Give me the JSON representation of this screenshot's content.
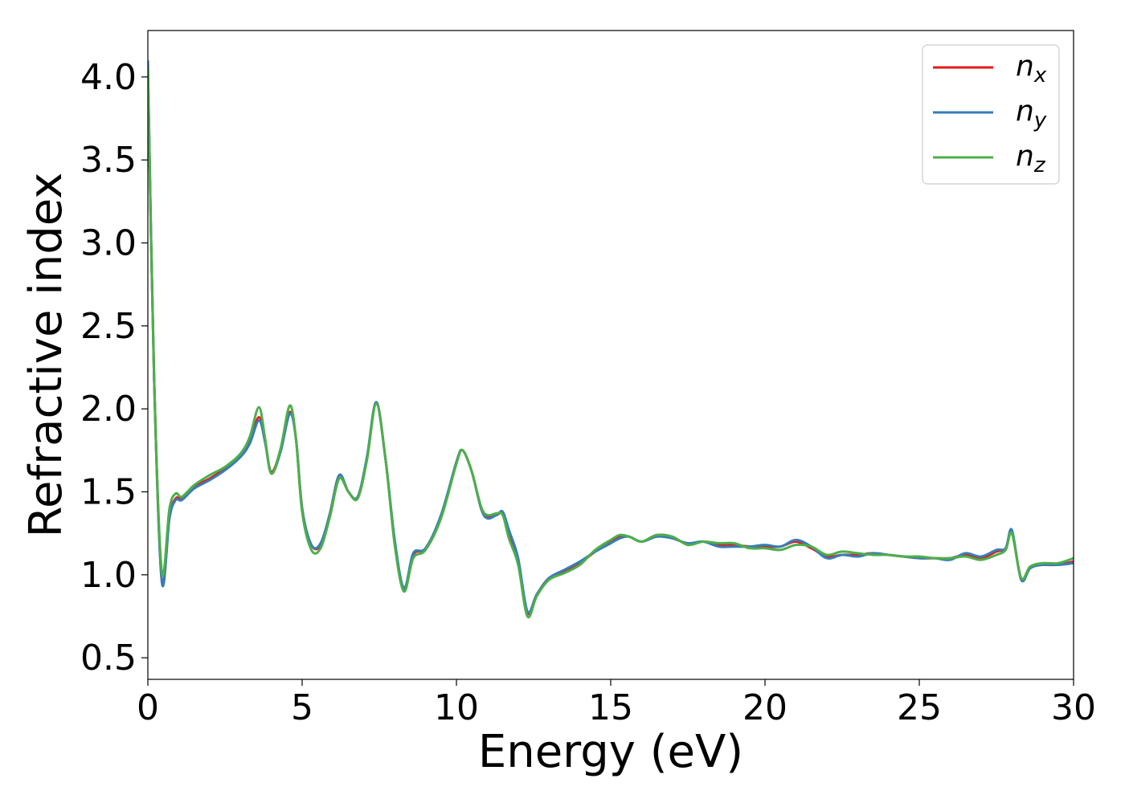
{
  "chart_data": {
    "type": "line",
    "title": "",
    "xlabel": "Energy (eV)",
    "ylabel": "Refractive index",
    "xlim": [
      0,
      30
    ],
    "ylim": [
      0.37,
      4.28
    ],
    "xticks": [
      0,
      5,
      10,
      15,
      20,
      25,
      30
    ],
    "xtick_labels": [
      "0",
      "5",
      "10",
      "15",
      "20",
      "25",
      "30"
    ],
    "yticks": [
      0.5,
      1.0,
      1.5,
      2.0,
      2.5,
      3.0,
      3.5,
      4.0
    ],
    "ytick_labels": [
      "0.5",
      "1.0",
      "1.5",
      "2.0",
      "2.5",
      "3.0",
      "3.5",
      "4.0"
    ],
    "grid": false,
    "legend_position": "top-right",
    "legend": [
      {
        "base": "n",
        "sub": "x"
      },
      {
        "base": "n",
        "sub": "y"
      },
      {
        "base": "n",
        "sub": "z"
      }
    ],
    "x": [
      0,
      0.2,
      0.45,
      0.7,
      0.9,
      1.1,
      1.5,
      2.0,
      2.5,
      3.0,
      3.3,
      3.6,
      3.8,
      4.0,
      4.3,
      4.6,
      4.8,
      5.0,
      5.3,
      5.6,
      5.9,
      6.2,
      6.5,
      6.8,
      7.1,
      7.4,
      7.7,
      8.0,
      8.3,
      8.6,
      9.0,
      9.5,
      10.0,
      10.2,
      10.5,
      10.8,
      11.0,
      11.3,
      11.5,
      11.7,
      12.0,
      12.3,
      12.6,
      13.0,
      13.5,
      14.0,
      14.5,
      15.0,
      15.3,
      15.6,
      16.0,
      16.5,
      17.0,
      17.5,
      18.0,
      18.5,
      19.0,
      19.5,
      20.0,
      20.5,
      21.0,
      21.5,
      22.0,
      22.5,
      23.0,
      23.5,
      24.0,
      24.5,
      25.0,
      25.5,
      26.0,
      26.5,
      27.0,
      27.5,
      27.8,
      28.0,
      28.3,
      28.6,
      29.0,
      29.5,
      30.0
    ],
    "series": [
      {
        "name": "n_x",
        "color": "#e41a1c",
        "values": [
          4.08,
          2.2,
          0.97,
          1.35,
          1.46,
          1.46,
          1.53,
          1.58,
          1.64,
          1.72,
          1.8,
          1.95,
          1.8,
          1.62,
          1.75,
          1.98,
          1.82,
          1.4,
          1.18,
          1.18,
          1.37,
          1.6,
          1.5,
          1.47,
          1.7,
          2.04,
          1.7,
          1.2,
          0.91,
          1.12,
          1.16,
          1.35,
          1.68,
          1.75,
          1.62,
          1.4,
          1.35,
          1.36,
          1.37,
          1.25,
          1.08,
          0.77,
          0.88,
          0.98,
          1.02,
          1.07,
          1.14,
          1.2,
          1.23,
          1.23,
          1.2,
          1.24,
          1.22,
          1.19,
          1.2,
          1.18,
          1.18,
          1.17,
          1.17,
          1.17,
          1.2,
          1.16,
          1.11,
          1.12,
          1.12,
          1.13,
          1.12,
          1.11,
          1.1,
          1.1,
          1.1,
          1.12,
          1.1,
          1.14,
          1.16,
          1.26,
          0.98,
          1.05,
          1.06,
          1.06,
          1.08
        ]
      },
      {
        "name": "n_y",
        "color": "#377eb8",
        "values": [
          4.1,
          2.2,
          0.96,
          1.34,
          1.45,
          1.45,
          1.52,
          1.57,
          1.63,
          1.71,
          1.79,
          1.93,
          1.8,
          1.61,
          1.74,
          1.97,
          1.82,
          1.4,
          1.18,
          1.19,
          1.37,
          1.6,
          1.5,
          1.47,
          1.71,
          2.04,
          1.7,
          1.21,
          0.92,
          1.13,
          1.16,
          1.36,
          1.68,
          1.75,
          1.62,
          1.4,
          1.34,
          1.36,
          1.38,
          1.27,
          1.1,
          0.78,
          0.88,
          0.98,
          1.03,
          1.08,
          1.14,
          1.19,
          1.22,
          1.23,
          1.2,
          1.23,
          1.22,
          1.19,
          1.2,
          1.17,
          1.17,
          1.17,
          1.18,
          1.17,
          1.21,
          1.17,
          1.1,
          1.12,
          1.11,
          1.13,
          1.12,
          1.11,
          1.1,
          1.1,
          1.09,
          1.13,
          1.11,
          1.15,
          1.16,
          1.27,
          0.97,
          1.04,
          1.06,
          1.06,
          1.07
        ]
      },
      {
        "name": "n_z",
        "color": "#4daf4a",
        "values": [
          4.05,
          2.2,
          1.02,
          1.4,
          1.49,
          1.47,
          1.54,
          1.6,
          1.65,
          1.73,
          1.83,
          2.01,
          1.82,
          1.61,
          1.76,
          2.02,
          1.82,
          1.38,
          1.15,
          1.16,
          1.35,
          1.58,
          1.5,
          1.46,
          1.69,
          2.03,
          1.7,
          1.18,
          0.9,
          1.1,
          1.15,
          1.34,
          1.67,
          1.75,
          1.62,
          1.41,
          1.36,
          1.37,
          1.36,
          1.22,
          1.06,
          0.75,
          0.87,
          0.97,
          1.01,
          1.06,
          1.15,
          1.21,
          1.24,
          1.23,
          1.2,
          1.24,
          1.23,
          1.18,
          1.2,
          1.19,
          1.19,
          1.16,
          1.16,
          1.15,
          1.18,
          1.17,
          1.12,
          1.14,
          1.13,
          1.12,
          1.12,
          1.11,
          1.11,
          1.1,
          1.1,
          1.11,
          1.09,
          1.12,
          1.15,
          1.25,
          0.98,
          1.05,
          1.07,
          1.07,
          1.1
        ]
      }
    ]
  }
}
